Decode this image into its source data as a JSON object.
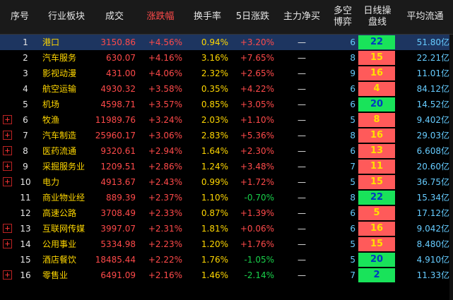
{
  "header": {
    "index": "序号",
    "sector": "行业板块",
    "volume": "成交",
    "change": "涨跌幅",
    "turnover": "换手率",
    "rise5": "5日涨跌",
    "main_net": "主力净买",
    "ls_line1": "多空",
    "ls_line2": "博弈",
    "daily_line1": "日线操",
    "daily_line2": "盘线",
    "avg_flow": "平均流通"
  },
  "selected_row_index": 0,
  "rows": [
    {
      "idx": "1",
      "name": "港口",
      "vol": "3150.86",
      "chg": "+4.56%",
      "turn": "0.94%",
      "r5": "+3.20%",
      "r5_dir": "up",
      "flow": "—",
      "ls": "6",
      "daily": "22",
      "daily_color": "green",
      "amt": "51.80亿",
      "expandable": false
    },
    {
      "idx": "2",
      "name": "汽车服务",
      "vol": "630.07",
      "chg": "+4.16%",
      "turn": "3.16%",
      "r5": "+7.65%",
      "r5_dir": "up",
      "flow": "—",
      "ls": "8",
      "daily": "15",
      "daily_color": "red",
      "amt": "22.21亿",
      "expandable": false
    },
    {
      "idx": "3",
      "name": "影视动漫",
      "vol": "431.00",
      "chg": "+4.06%",
      "turn": "2.32%",
      "r5": "+2.65%",
      "r5_dir": "up",
      "flow": "—",
      "ls": "9",
      "daily": "16",
      "daily_color": "red",
      "amt": "11.01亿",
      "expandable": false
    },
    {
      "idx": "4",
      "name": "航空运输",
      "vol": "4930.32",
      "chg": "+3.58%",
      "turn": "0.35%",
      "r5": "+4.22%",
      "r5_dir": "up",
      "flow": "—",
      "ls": "6",
      "daily": "4",
      "daily_color": "red",
      "amt": "84.12亿",
      "expandable": false
    },
    {
      "idx": "5",
      "name": "机场",
      "vol": "4598.71",
      "chg": "+3.57%",
      "turn": "0.85%",
      "r5": "+3.05%",
      "r5_dir": "up",
      "flow": "—",
      "ls": "6",
      "daily": "20",
      "daily_color": "green",
      "amt": "14.52亿",
      "expandable": false
    },
    {
      "idx": "6",
      "name": "牧渔",
      "vol": "11989.76",
      "chg": "+3.24%",
      "turn": "2.03%",
      "r5": "+1.10%",
      "r5_dir": "up",
      "flow": "—",
      "ls": "5",
      "daily": "8",
      "daily_color": "red",
      "amt": "9.402亿",
      "expandable": true
    },
    {
      "idx": "7",
      "name": "汽车制造",
      "vol": "25960.17",
      "chg": "+3.06%",
      "turn": "2.83%",
      "r5": "+5.36%",
      "r5_dir": "up",
      "flow": "—",
      "ls": "8",
      "daily": "16",
      "daily_color": "red",
      "amt": "29.03亿",
      "expandable": true
    },
    {
      "idx": "8",
      "name": "医药流通",
      "vol": "9320.61",
      "chg": "+2.94%",
      "turn": "1.64%",
      "r5": "+2.30%",
      "r5_dir": "up",
      "flow": "—",
      "ls": "6",
      "daily": "13",
      "daily_color": "red",
      "amt": "6.608亿",
      "expandable": true
    },
    {
      "idx": "9",
      "name": "采掘服务业",
      "vol": "1209.51",
      "chg": "+2.86%",
      "turn": "1.24%",
      "r5": "+3.48%",
      "r5_dir": "up",
      "flow": "—",
      "ls": "7",
      "daily": "11",
      "daily_color": "red",
      "amt": "20.60亿",
      "expandable": true
    },
    {
      "idx": "10",
      "name": "电力",
      "vol": "4913.67",
      "chg": "+2.43%",
      "turn": "0.99%",
      "r5": "+1.72%",
      "r5_dir": "up",
      "flow": "—",
      "ls": "5",
      "daily": "15",
      "daily_color": "red",
      "amt": "36.75亿",
      "expandable": true
    },
    {
      "idx": "11",
      "name": "商业物业经",
      "vol": "889.39",
      "chg": "+2.37%",
      "turn": "1.10%",
      "r5": "-0.70%",
      "r5_dir": "down",
      "flow": "—",
      "ls": "8",
      "daily": "22",
      "daily_color": "green",
      "amt": "15.34亿",
      "expandable": false
    },
    {
      "idx": "12",
      "name": "高速公路",
      "vol": "3708.49",
      "chg": "+2.33%",
      "turn": "0.87%",
      "r5": "+1.39%",
      "r5_dir": "up",
      "flow": "—",
      "ls": "6",
      "daily": "5",
      "daily_color": "red",
      "amt": "17.12亿",
      "expandable": false
    },
    {
      "idx": "13",
      "name": "互联网传媒",
      "vol": "3997.07",
      "chg": "+2.31%",
      "turn": "1.81%",
      "r5": "+0.06%",
      "r5_dir": "up",
      "flow": "—",
      "ls": "6",
      "daily": "16",
      "daily_color": "red",
      "amt": "9.042亿",
      "expandable": true
    },
    {
      "idx": "14",
      "name": "公用事业",
      "vol": "5334.98",
      "chg": "+2.23%",
      "turn": "1.20%",
      "r5": "+1.76%",
      "r5_dir": "up",
      "flow": "—",
      "ls": "5",
      "daily": "15",
      "daily_color": "red",
      "amt": "8.480亿",
      "expandable": true
    },
    {
      "idx": "15",
      "name": "酒店餐饮",
      "vol": "18485.44",
      "chg": "+2.22%",
      "turn": "1.76%",
      "r5": "-1.05%",
      "r5_dir": "down",
      "flow": "—",
      "ls": "5",
      "daily": "20",
      "daily_color": "green",
      "amt": "4.910亿",
      "expandable": false
    },
    {
      "idx": "16",
      "name": "零售业",
      "vol": "6491.09",
      "chg": "+2.16%",
      "turn": "1.46%",
      "r5": "-2.14%",
      "r5_dir": "down",
      "flow": "—",
      "ls": "7",
      "daily": "2",
      "daily_color": "green",
      "amt": "11.33亿",
      "expandable": true
    }
  ],
  "colors": {
    "up": "#ff4a4a",
    "down": "#19d04a",
    "name": "#ffd700",
    "accent": "#66ccff",
    "badge_green": "#19e35a",
    "badge_red": "#ff5a5a",
    "selected_row": "#1d3560"
  },
  "icons": {
    "expand": "plus-box-icon"
  },
  "expand_glyph": "+"
}
